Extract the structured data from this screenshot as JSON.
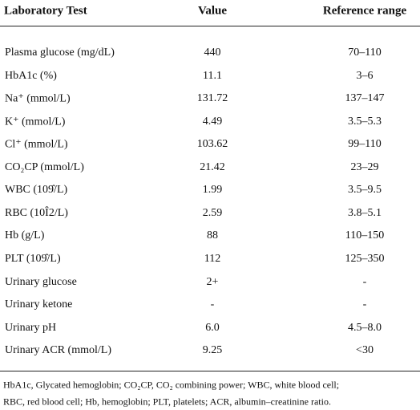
{
  "table": {
    "header": [
      "Laboratory Test",
      "Value",
      "Reference range"
    ],
    "rows": [
      [
        "Plasma glucose (mg/dL)",
        "440",
        "70–110"
      ],
      [
        "HbA1c (%)",
        "11.1",
        "3–6"
      ],
      [
        "Na⁺ (mmol/L)",
        "131.72",
        "137–147"
      ],
      [
        "K⁺ (mmol/L)",
        "4.49",
        "3.5–5.3"
      ],
      [
        "Cl⁺ (mmol/L)",
        "103.62",
        "99–110"
      ],
      [
        "CO₂CP (mmol/L)",
        "21.42",
        "23–29"
      ],
      [
        "WBC (109̂/L)",
        "1.99",
        "3.5–9.5"
      ],
      [
        "RBC (10Î2/L)",
        "2.59",
        "3.8–5.1"
      ],
      [
        "Hb (g/L)",
        "88",
        "110–150"
      ],
      [
        "PLT (109̂/L)",
        "112",
        "125–350"
      ],
      [
        "Urinary glucose",
        "2+",
        "-"
      ],
      [
        "Urinary ketone",
        "-",
        "-"
      ],
      [
        "Urinary pH",
        "6.0",
        "4.5–8.0"
      ],
      [
        "Urinary ACR (mmol/L)",
        "9.25",
        "<30"
      ]
    ]
  },
  "footnote": {
    "lines": [
      "HbA1c, Glycated hemoglobin; CO₂CP, CO₂ combining power; WBC, white blood cell;",
      "RBC, red blood cell; Hb, hemoglobin; PLT, platelets; ACR, albumin–creatinine ratio."
    ]
  }
}
